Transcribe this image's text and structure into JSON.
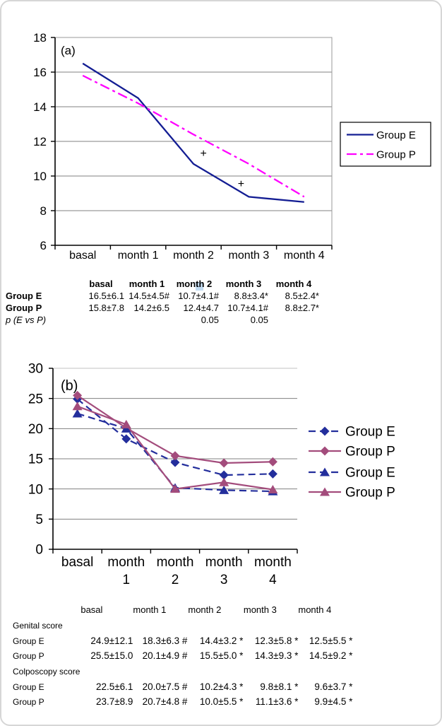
{
  "colors": {
    "grid": "#808080",
    "grid_light": "#c0c0c0",
    "axis": "#000000",
    "frame": "#9a9a9a",
    "annotation": "#000000",
    "legend_border": "#000000"
  },
  "chart_data": [
    {
      "type": "line",
      "panel_label": "(a)",
      "categories": [
        "basal",
        "month 1",
        "month 2",
        "month 3",
        "month 4"
      ],
      "ylim": [
        6,
        18
      ],
      "yticks": [
        6,
        8,
        10,
        12,
        14,
        16,
        18
      ],
      "grid": true,
      "legend_position": "right",
      "series": [
        {
          "name": "Group E",
          "values": [
            16.5,
            14.5,
            10.7,
            8.8,
            8.5
          ],
          "color": "#131D93",
          "style": "solid",
          "marker": "none"
        },
        {
          "name": "Group P",
          "values": [
            15.8,
            14.2,
            12.4,
            10.7,
            8.8
          ],
          "color": "#FF00FF",
          "style": "dashdot",
          "marker": "none"
        }
      ],
      "annotations": [
        {
          "text": "+",
          "x": 2.18,
          "value": 11.3
        },
        {
          "text": "+",
          "x": 2.86,
          "value": 9.55
        }
      ]
    },
    {
      "type": "line",
      "panel_label": "(b)",
      "categories": [
        "basal",
        "month 1",
        "month 2",
        "month 3",
        "month 4"
      ],
      "ylim": [
        0,
        30
      ],
      "yticks": [
        0,
        5,
        10,
        15,
        20,
        25,
        30
      ],
      "grid": true,
      "legend_position": "right",
      "series": [
        {
          "name": "Group E",
          "values": [
            24.9,
            18.3,
            14.4,
            12.3,
            12.5
          ],
          "color": "#232E9C",
          "style": "dashed",
          "marker": "diamond"
        },
        {
          "name": "Group P",
          "values": [
            25.5,
            20.1,
            15.5,
            14.3,
            14.5
          ],
          "color": "#A34C7C",
          "style": "solid",
          "marker": "diamond"
        },
        {
          "name": "Group E",
          "values": [
            22.5,
            20.0,
            10.2,
            9.8,
            9.6
          ],
          "color": "#232E9C",
          "style": "dashed",
          "marker": "triangle"
        },
        {
          "name": "Group P",
          "values": [
            23.7,
            20.7,
            10.0,
            11.1,
            9.9
          ],
          "color": "#A34C7C",
          "style": "solid",
          "marker": "triangle"
        }
      ]
    }
  ],
  "table_a": {
    "headers": [
      "basal",
      "month 1",
      "month 2",
      "month 3",
      "month 4"
    ],
    "rows": [
      {
        "label": "Group E",
        "cells": [
          "16.5±6.1",
          "14.5±4.5#",
          "10.7±4.1#",
          "8.8±3.4*",
          "8.5±2.4*"
        ]
      },
      {
        "label": "Group P",
        "cells": [
          "15.8±7.8",
          "14.2±6.5",
          "12.4±4.7",
          "10.7±4.1#",
          "8.8±2.7*"
        ]
      },
      {
        "label": "p (E vs P)",
        "cells": [
          "",
          "",
          "0.05",
          "0.05",
          ""
        ]
      }
    ]
  },
  "table_b": {
    "headers": [
      "basal",
      "month 1",
      "month 2",
      "month 3",
      "month 4"
    ],
    "section1": "Genital score",
    "section2": "Colposcopy score",
    "rows": [
      {
        "label": "Group E",
        "cells": [
          "24.9±12.1",
          "18.3±6.3 #",
          "14.4±3.2 *",
          "12.3±5.8 *",
          "12.5±5.5 *"
        ]
      },
      {
        "label": "Group P",
        "cells": [
          "25.5±15.0",
          "20.1±4.9 #",
          "15.5±5.0 *",
          "14.3±9.3 *",
          "14.5±9.2 *"
        ]
      },
      {
        "label": "Group E",
        "cells": [
          "22.5±6.1",
          "20.0±7.5 #",
          "10.2±4.3 *",
          "9.8±8.1 *",
          "9.6±3.7 *"
        ]
      },
      {
        "label": "Group P",
        "cells": [
          "23.7±8.9",
          "20.7±4.8 #",
          "10.0±5.5 *",
          "11.1±3.6 *",
          "9.9±4.5 *"
        ]
      }
    ]
  }
}
